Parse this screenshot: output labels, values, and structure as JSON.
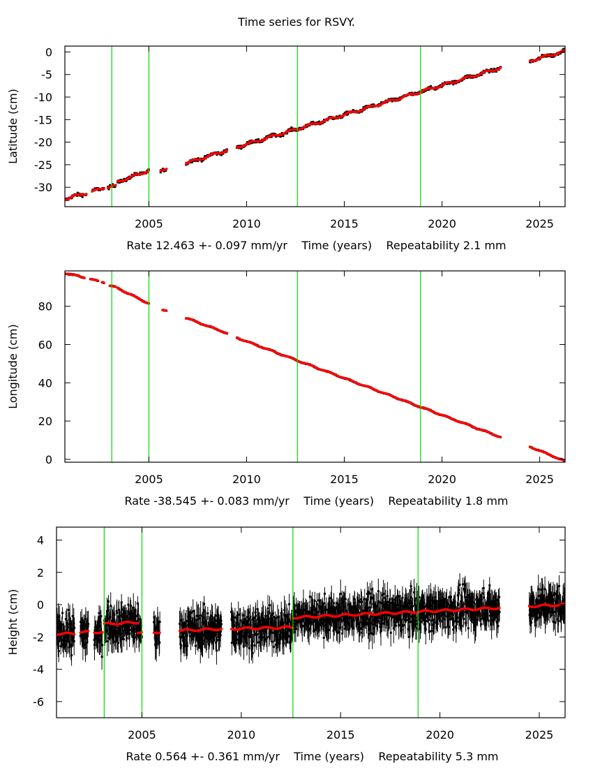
{
  "page": {
    "title": "Time series for RSVY."
  },
  "colors": {
    "data_points": "#000000",
    "model_fit": "#ff0000",
    "offset_lines": "#00dd00",
    "frame": "#000000"
  },
  "chart_data": [
    {
      "type": "scatter",
      "title": "Time series for RSVY.",
      "ylabel": "Latitude (cm)",
      "xlabel": "Rate 12.463 +- 0.097 mm/yr    Time (years)    Repeatability 2.1 mm",
      "rate_text": "Rate 12.463 +- 0.097 mm/yr",
      "time_text": "Time (years)",
      "repeat_text": "Repeatability 2.1 mm",
      "xlim": [
        2000.7,
        2026.3
      ],
      "ylim": [
        -34.3,
        1.3
      ],
      "xticks": [
        2005,
        2010,
        2015,
        2020,
        2025
      ],
      "xtick_labels": [
        "2005",
        "2010",
        "2015",
        "2020",
        "2025"
      ],
      "yticks": [
        0,
        -5,
        -10,
        -15,
        -20,
        -25,
        -30
      ],
      "ytick_labels": [
        "0",
        "-5",
        "-10",
        "-15",
        "-20",
        "-25",
        "-30"
      ],
      "grid": false,
      "offset_epochs": [
        2003.1,
        2005.0,
        2012.6,
        2018.9
      ],
      "data_segments": [
        {
          "start": 2000.7,
          "end": 2001.8,
          "y_start": -32.6,
          "y_end": -31.3
        },
        {
          "start": 2002.1,
          "end": 2002.5,
          "y_start": -31.0,
          "y_end": -30.4
        },
        {
          "start": 2002.6,
          "end": 2002.7,
          "y_start": -30.2,
          "y_end": -30.1
        },
        {
          "start": 2002.9,
          "end": 2003.3,
          "y_start": -30.0,
          "y_end": -29.8
        },
        {
          "start": 2003.4,
          "end": 2005.0,
          "y_start": -28.8,
          "y_end": -26.3
        },
        {
          "start": 2005.6,
          "end": 2005.9,
          "y_start": -26.1,
          "y_end": -25.8
        },
        {
          "start": 2006.9,
          "end": 2009.0,
          "y_start": -24.7,
          "y_end": -21.8
        },
        {
          "start": 2009.5,
          "end": 2023.0,
          "y_start": -21.1,
          "y_end": -3.5
        },
        {
          "start": 2024.5,
          "end": 2026.3,
          "y_start": -2.0,
          "y_end": 0.2
        }
      ],
      "scatter_noise_cm": 0.5
    },
    {
      "type": "scatter",
      "ylabel": "Longitude (cm)",
      "xlabel": "Rate -38.545 +- 0.083 mm/yr    Time (years)    Repeatability 1.8 mm",
      "rate_text": "Rate -38.545 +- 0.083 mm/yr",
      "time_text": "Time (years)",
      "repeat_text": "Repeatability 1.8 mm",
      "xlim": [
        2000.7,
        2026.3
      ],
      "ylim": [
        -1.5,
        98.5
      ],
      "xticks": [
        2005,
        2010,
        2015,
        2020,
        2025
      ],
      "xtick_labels": [
        "2005",
        "2010",
        "2015",
        "2020",
        "2025"
      ],
      "yticks": [
        0,
        20,
        40,
        60,
        80
      ],
      "ytick_labels": [
        "0",
        "20",
        "40",
        "60",
        "80"
      ],
      "grid": false,
      "offset_epochs": [
        2003.1,
        2005.0,
        2012.6,
        2018.9
      ],
      "data_segments": [
        {
          "start": 2000.7,
          "end": 2001.7,
          "y_start": 97.4,
          "y_end": 95.0
        },
        {
          "start": 2002.0,
          "end": 2002.4,
          "y_start": 94.2,
          "y_end": 93.2
        },
        {
          "start": 2002.6,
          "end": 2002.7,
          "y_start": 92.7,
          "y_end": 92.5
        },
        {
          "start": 2003.0,
          "end": 2003.3,
          "y_start": 90.7,
          "y_end": 89.9
        },
        {
          "start": 2003.4,
          "end": 2005.0,
          "y_start": 89.5,
          "y_end": 81.4
        },
        {
          "start": 2005.7,
          "end": 2005.9,
          "y_start": 78.3,
          "y_end": 77.8
        },
        {
          "start": 2006.9,
          "end": 2009.0,
          "y_start": 73.9,
          "y_end": 65.9
        },
        {
          "start": 2009.5,
          "end": 2023.0,
          "y_start": 63.6,
          "y_end": 11.6
        },
        {
          "start": 2024.5,
          "end": 2026.3,
          "y_start": 6.6,
          "y_end": -1.0
        }
      ],
      "scatter_noise_cm": 0.3
    },
    {
      "type": "scatter",
      "ylabel": "Height (cm)",
      "xlabel": "Rate 0.564 +- 0.361 mm/yr    Time (years)    Repeatability 5.3 mm",
      "rate_text": "Rate 0.564 +- 0.361 mm/yr",
      "time_text": "Time (years)",
      "repeat_text": "Repeatability 5.3 mm",
      "xlim": [
        2000.7,
        2026.3
      ],
      "ylim": [
        -7.0,
        4.8
      ],
      "xticks": [
        2005,
        2010,
        2015,
        2020,
        2025
      ],
      "xtick_labels": [
        "2005",
        "2010",
        "2015",
        "2020",
        "2025"
      ],
      "yticks": [
        4,
        2,
        0,
        -2,
        -4,
        -6
      ],
      "ytick_labels": [
        "4",
        "2",
        "0",
        "-2",
        "-4",
        "-6"
      ],
      "grid": false,
      "offset_epochs": [
        2003.1,
        2005.0,
        2012.6,
        2018.9
      ],
      "data_segments": [
        {
          "start": 2000.7,
          "end": 2001.6,
          "y_start": -1.8,
          "y_end": -1.8
        },
        {
          "start": 2001.9,
          "end": 2002.3,
          "y_start": -1.7,
          "y_end": -1.7
        },
        {
          "start": 2002.6,
          "end": 2003.0,
          "y_start": -1.7,
          "y_end": -1.7
        },
        {
          "start": 2003.1,
          "end": 2004.8,
          "y_start": -1.2,
          "y_end": -1.1
        },
        {
          "start": 2004.8,
          "end": 2005.0,
          "y_start": -1.7,
          "y_end": -1.7
        },
        {
          "start": 2005.6,
          "end": 2005.9,
          "y_start": -1.7,
          "y_end": -1.7
        },
        {
          "start": 2006.9,
          "end": 2009.0,
          "y_start": -1.6,
          "y_end": -1.5
        },
        {
          "start": 2009.5,
          "end": 2012.6,
          "y_start": -1.5,
          "y_end": -1.4
        },
        {
          "start": 2012.6,
          "end": 2023.0,
          "y_start": -0.8,
          "y_end": -0.2
        },
        {
          "start": 2024.5,
          "end": 2026.3,
          "y_start": -0.1,
          "y_end": 0.0
        }
      ],
      "scatter_noise_cm": 0.8,
      "error_bar_cm": 0.6
    }
  ]
}
